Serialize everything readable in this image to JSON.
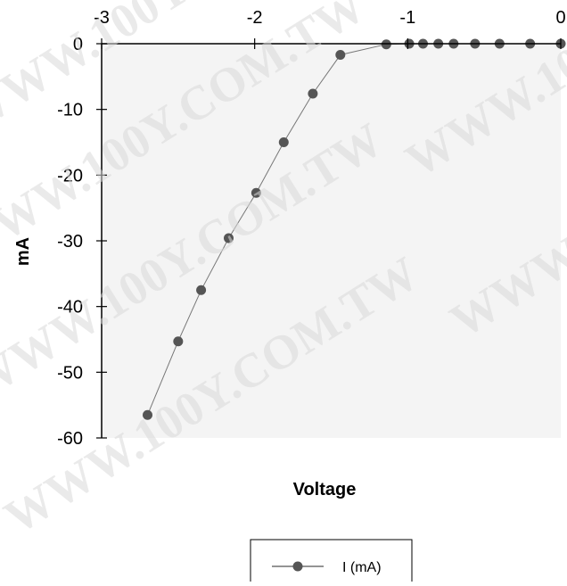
{
  "watermark_text": "WWW.100Y.COM.TW",
  "chart_data": {
    "type": "line",
    "title": "",
    "xlabel": "Voltage",
    "ylabel": "mA",
    "xlim": [
      -3,
      0
    ],
    "ylim": [
      -60,
      0
    ],
    "x_ticks": [
      -3,
      -2,
      -1,
      0
    ],
    "y_ticks": [
      0,
      -10,
      -20,
      -30,
      -40,
      -50,
      -60
    ],
    "x_axis_position": "top",
    "grid": false,
    "legend_position": "bottom-center",
    "plot_background": "#f4f4f4",
    "series": [
      {
        "name": "I (mA)",
        "color": "#555555",
        "marker": "circle",
        "x": [
          -2.7,
          -2.5,
          -2.35,
          -2.17,
          -1.99,
          -1.81,
          -1.62,
          -1.44,
          -1.14,
          -0.99,
          -0.9,
          -0.8,
          -0.7,
          -0.56,
          -0.4,
          -0.2,
          0.0
        ],
        "y": [
          -56.5,
          -45.3,
          -37.5,
          -29.6,
          -22.7,
          -15.0,
          -7.6,
          -1.7,
          -0.1,
          0.0,
          0.0,
          0.0,
          0.0,
          0.0,
          0.0,
          0.0,
          0.0
        ]
      }
    ]
  }
}
